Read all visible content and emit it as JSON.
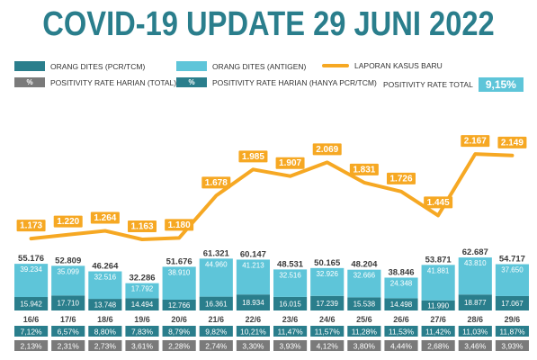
{
  "title": "COVID-19 UPDATE 29 JUNI 2022",
  "legend": {
    "pcr_label": "ORANG DITES (PCR/TCM)",
    "antigen_label": "ORANG DITES (ANTIGEN)",
    "kasus_label": "LAPORAN KASUS BARU",
    "total_pos_symbol": "%",
    "total_pos_label": "POSITIVITY RATE HARIAN (TOTAL)",
    "pcr_pos_symbol": "%",
    "pcr_pos_label": "POSITIVITY RATE HARIAN (HANYA PCR/TCM)",
    "positivity_total_label": "POSITIVITY RATE TOTAL",
    "positivity_total_value": "9,15%"
  },
  "colors": {
    "title": "#2a7e8c",
    "pcr": "#2a7e8c",
    "antigen": "#5ec5d9",
    "line": "#f6a823",
    "pos_total_bg": "#7a7a7a",
    "pos_pcr_bg": "#2a7e8c"
  },
  "chart_data": {
    "type": "bar",
    "categories": [
      "16/6",
      "17/6",
      "18/6",
      "19/6",
      "20/6",
      "21/6",
      "22/6",
      "23/6",
      "24/6",
      "25/6",
      "26/6",
      "27/6",
      "28/6",
      "29/6"
    ],
    "series": [
      {
        "name": "ORANG DITES (PCR/TCM)",
        "values": [
          15942,
          17710,
          13748,
          14494,
          12766,
          16361,
          18934,
          16015,
          17239,
          15538,
          14498,
          11990,
          18877,
          17067
        ],
        "labels": [
          "15.942",
          "17.710",
          "13.748",
          "14.494",
          "12.766",
          "16.361",
          "18.934",
          "16.015",
          "17.239",
          "15.538",
          "14.498",
          "11.990",
          "18.877",
          "17.067"
        ]
      },
      {
        "name": "ORANG DITES (ANTIGEN)",
        "values": [
          39234,
          35099,
          32516,
          17792,
          38910,
          44960,
          41213,
          32516,
          32926,
          32666,
          24348,
          41881,
          43810,
          37650
        ],
        "labels": [
          "39.234",
          "35.099",
          "32.516",
          "17.792",
          "38.910",
          "44.960",
          "41.213",
          "32.516",
          "32.926",
          "32.666",
          "24.348",
          "41.881",
          "43.810",
          "37.650"
        ]
      },
      {
        "name": "LAPORAN KASUS BARU",
        "values": [
          1173,
          1220,
          1264,
          1163,
          1180,
          1678,
          1985,
          1907,
          2069,
          1831,
          1726,
          1445,
          2167,
          2149
        ],
        "labels": [
          "1.173",
          "1.220",
          "1.264",
          "1.163",
          "1.180",
          "1.678",
          "1.985",
          "1.907",
          "2.069",
          "1.831",
          "1.726",
          "1.445",
          "2.167",
          "2.149"
        ]
      }
    ],
    "totals": [
      "55.176",
      "52.809",
      "46.264",
      "32.286",
      "51.676",
      "61.321",
      "60.147",
      "48.531",
      "50.165",
      "48.204",
      "38.846",
      "53.871",
      "62.687",
      "54.717"
    ],
    "positivity_pcr": [
      "7,12%",
      "6,57%",
      "8,80%",
      "7,83%",
      "8,79%",
      "9,82%",
      "10,21%",
      "11,47%",
      "11,57%",
      "11,28%",
      "11,53%",
      "11,42%",
      "11,03%",
      "11,87%"
    ],
    "positivity_total": [
      "2,13%",
      "2,31%",
      "2,73%",
      "3,61%",
      "2,28%",
      "2,74%",
      "3,30%",
      "3,93%",
      "4,12%",
      "3,80%",
      "4,44%",
      "2,68%",
      "3,46%",
      "3,93%"
    ]
  }
}
